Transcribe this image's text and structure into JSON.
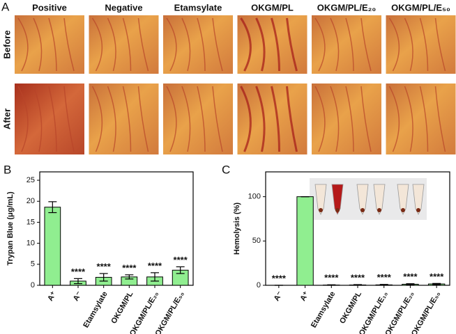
{
  "panel_a": {
    "label": "A",
    "columns": [
      "Positive",
      "Negative",
      "Etamsylate",
      "OKGM/PL",
      "OKGM/PL/E₂₀",
      "OKGM/PL/E₅₀"
    ],
    "rows": [
      "Before",
      "After"
    ]
  },
  "chart_data": [
    {
      "type": "bar",
      "panel_label": "B",
      "y_label": "Trypan Blue (μg/mL)",
      "categories": [
        "A⁺",
        "A⁻",
        "Etamsylate",
        "OKGM/PL",
        "OKGM/PL/E₂₀",
        "OKGM/PL/E₅₀"
      ],
      "values": [
        18.6,
        1.0,
        1.9,
        2.0,
        2.0,
        3.6
      ],
      "errors": [
        1.3,
        0.6,
        0.9,
        0.5,
        1.0,
        0.8
      ],
      "annotations": [
        null,
        "****",
        "****",
        "****",
        "****",
        "****"
      ],
      "color": "#90ee90",
      "ylim": [
        0,
        27
      ],
      "yticks": [
        0,
        5,
        10,
        15,
        20,
        25
      ]
    },
    {
      "type": "bar",
      "panel_label": "C",
      "y_label": "Hemolysis (%)",
      "categories": [
        "A⁻",
        "A⁺",
        "Etamsylate",
        "OKGM/PL",
        "OKGM/PL/E₁₀",
        "OKGM/PL/E₂₀",
        "OKGM/PL/E₅₀"
      ],
      "values": [
        0,
        100,
        0.3,
        0.4,
        0.5,
        1.2,
        1.5
      ],
      "errors": [
        0,
        0,
        0.3,
        0.4,
        0.5,
        0.6,
        0.6
      ],
      "annotations": [
        "****",
        null,
        "****",
        "****",
        "****",
        "****",
        "****"
      ],
      "color": "#90ee90",
      "ylim": [
        0,
        128
      ],
      "yticks": [
        0,
        50,
        100
      ]
    }
  ]
}
